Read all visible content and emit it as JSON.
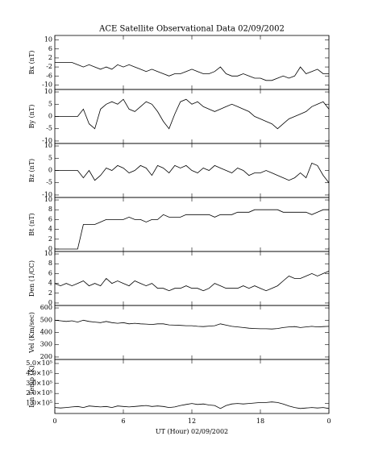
{
  "chart_data": [
    {
      "type": "line",
      "title": "ACE Satellite Observational Data   02/09/2002",
      "ylabel": "Bx (nT)",
      "ylim": [
        -12,
        12
      ],
      "yticks": [
        10,
        6,
        2,
        -2,
        -6,
        -10
      ],
      "color": "#000000",
      "x": [
        0,
        0.5,
        1,
        1.5,
        2,
        2.5,
        3,
        3.5,
        4,
        4.5,
        5,
        5.5,
        6,
        6.5,
        7,
        7.5,
        8,
        8.5,
        9,
        9.5,
        10,
        10.5,
        11,
        11.5,
        12,
        12.5,
        13,
        13.5,
        14,
        14.5,
        15,
        15.5,
        16,
        16.5,
        17,
        17.5,
        18,
        18.5,
        19,
        19.5,
        20,
        20.5,
        21,
        21.5,
        22,
        22.5,
        23,
        23.5,
        24
      ],
      "values": [
        0,
        0,
        0,
        0,
        -1,
        -2,
        -1,
        -2,
        -3,
        -2,
        -3,
        -1,
        -2,
        -1,
        -2,
        -3,
        -4,
        -3,
        -4,
        -5,
        -6,
        -5,
        -5,
        -4,
        -3,
        -4,
        -5,
        -5,
        -4,
        -2,
        -5,
        -6,
        -6,
        -5,
        -6,
        -7,
        -7,
        -8,
        -8,
        -7,
        -6,
        -7,
        -6,
        -2,
        -5,
        -4,
        -3,
        -5,
        -5
      ]
    },
    {
      "type": "line",
      "ylabel": "By (nT)",
      "ylim": [
        -11,
        11
      ],
      "yticks": [
        10,
        5,
        0,
        -5,
        -10
      ],
      "color": "#000000",
      "x": [
        0,
        0.5,
        1,
        1.5,
        2,
        2.5,
        3,
        3.5,
        4,
        4.5,
        5,
        5.5,
        6,
        6.5,
        7,
        7.5,
        8,
        8.5,
        9,
        9.5,
        10,
        10.5,
        11,
        11.5,
        12,
        12.5,
        13,
        13.5,
        14,
        14.5,
        15,
        15.5,
        16,
        16.5,
        17,
        17.5,
        18,
        18.5,
        19,
        19.5,
        20,
        20.5,
        21,
        21.5,
        22,
        22.5,
        23,
        23.5,
        24
      ],
      "values": [
        0,
        0,
        0,
        0,
        0,
        3,
        -3,
        -5,
        3,
        5,
        6,
        5,
        7,
        3,
        2,
        4,
        6,
        5,
        2,
        -2,
        -5,
        1,
        6,
        7,
        5,
        6,
        4,
        3,
        2,
        3,
        4,
        5,
        4,
        3,
        2,
        0,
        -1,
        -2,
        -3,
        -5,
        -3,
        -1,
        0,
        1,
        2,
        4,
        5,
        6,
        3
      ]
    },
    {
      "type": "line",
      "ylabel": "Bz (nT)",
      "ylim": [
        -11,
        11
      ],
      "yticks": [
        10,
        5,
        0,
        -5,
        -10
      ],
      "color": "#000000",
      "x": [
        0,
        0.5,
        1,
        1.5,
        2,
        2.5,
        3,
        3.5,
        4,
        4.5,
        5,
        5.5,
        6,
        6.5,
        7,
        7.5,
        8,
        8.5,
        9,
        9.5,
        10,
        10.5,
        11,
        11.5,
        12,
        12.5,
        13,
        13.5,
        14,
        14.5,
        15,
        15.5,
        16,
        16.5,
        17,
        17.5,
        18,
        18.5,
        19,
        19.5,
        20,
        20.5,
        21,
        21.5,
        22,
        22.5,
        23,
        23.5,
        24
      ],
      "values": [
        0,
        0,
        0,
        0,
        0,
        -3,
        0,
        -4,
        -2,
        1,
        0,
        2,
        1,
        -1,
        0,
        2,
        1,
        -2,
        2,
        1,
        -1,
        2,
        1,
        2,
        0,
        -1,
        1,
        0,
        2,
        1,
        0,
        -1,
        1,
        0,
        -2,
        -1,
        -1,
        0,
        -1,
        -2,
        -3,
        -4,
        -3,
        -1,
        -3,
        3,
        2,
        -2,
        -5
      ]
    },
    {
      "type": "line",
      "ylabel": "Bt (nT)",
      "ylim": [
        -0.5,
        10.5
      ],
      "yticks": [
        10,
        8,
        6,
        4,
        2,
        0
      ],
      "color": "#000000",
      "x": [
        0,
        0.5,
        1,
        1.5,
        2,
        2.5,
        3,
        3.5,
        4,
        4.5,
        5,
        5.5,
        6,
        6.5,
        7,
        7.5,
        8,
        8.5,
        9,
        9.5,
        10,
        10.5,
        11,
        11.5,
        12,
        12.5,
        13,
        13.5,
        14,
        14.5,
        15,
        15.5,
        16,
        16.5,
        17,
        17.5,
        18,
        18.5,
        19,
        19.5,
        20,
        20.5,
        21,
        21.5,
        22,
        22.5,
        23,
        23.5,
        24
      ],
      "values": [
        0,
        0,
        0,
        0,
        0,
        5,
        5,
        5,
        5.5,
        6,
        6,
        6,
        6,
        6.5,
        6,
        6,
        5.5,
        6,
        6,
        7,
        6.5,
        6.5,
        6.5,
        7,
        7,
        7,
        7,
        7,
        6.5,
        7,
        7,
        7,
        7.5,
        7.5,
        7.5,
        8,
        8,
        8,
        8,
        8,
        7.5,
        7.5,
        7.5,
        7.5,
        7.5,
        7,
        7.5,
        8,
        8
      ]
    },
    {
      "type": "line",
      "ylabel": "Den (1/CC)",
      "ylim": [
        -0.5,
        10.5
      ],
      "yticks": [
        10,
        8,
        6,
        4,
        2,
        0
      ],
      "color": "#000000",
      "x": [
        0,
        0.5,
        1,
        1.5,
        2,
        2.5,
        3,
        3.5,
        4,
        4.5,
        5,
        5.5,
        6,
        6.5,
        7,
        7.5,
        8,
        8.5,
        9,
        9.5,
        10,
        10.5,
        11,
        11.5,
        12,
        12.5,
        13,
        13.5,
        14,
        14.5,
        15,
        15.5,
        16,
        16.5,
        17,
        17.5,
        18,
        18.5,
        19,
        19.5,
        20,
        20.5,
        21,
        21.5,
        22,
        22.5,
        23,
        23.5,
        24
      ],
      "values": [
        4,
        3.5,
        4,
        3.5,
        4,
        4.5,
        3.5,
        4,
        3.5,
        5,
        4,
        4.5,
        4,
        3.5,
        4.5,
        4,
        3.5,
        4,
        3,
        3,
        2.5,
        3,
        3,
        3.5,
        3,
        3,
        2.5,
        3,
        4,
        3.5,
        3,
        3,
        3,
        3.5,
        3,
        3.5,
        3,
        2.5,
        3,
        3.5,
        4.5,
        5.5,
        5,
        5,
        5.5,
        6,
        5.5,
        6,
        6.5
      ]
    },
    {
      "type": "line",
      "ylabel": "Vel (Km/sec)",
      "ylim": [
        180,
        620
      ],
      "yticks": [
        600,
        500,
        400,
        300,
        200
      ],
      "color": "#000000",
      "x": [
        0,
        0.5,
        1,
        1.5,
        2,
        2.5,
        3,
        3.5,
        4,
        4.5,
        5,
        5.5,
        6,
        6.5,
        7,
        7.5,
        8,
        8.5,
        9,
        9.5,
        10,
        10.5,
        11,
        11.5,
        12,
        12.5,
        13,
        13.5,
        14,
        14.5,
        15,
        15.5,
        16,
        16.5,
        17,
        17.5,
        18,
        18.5,
        19,
        19.5,
        20,
        20.5,
        21,
        21.5,
        22,
        22.5,
        23,
        23.5,
        24
      ],
      "values": [
        500,
        495,
        490,
        495,
        485,
        500,
        490,
        485,
        480,
        490,
        480,
        475,
        480,
        470,
        475,
        470,
        468,
        465,
        470,
        470,
        462,
        460,
        458,
        455,
        455,
        450,
        448,
        452,
        455,
        470,
        460,
        450,
        445,
        440,
        435,
        432,
        430,
        430,
        428,
        432,
        440,
        445,
        448,
        440,
        445,
        450,
        445,
        448,
        450
      ]
    },
    {
      "type": "line",
      "ylabel": "Ion Temp (K)",
      "xlabel": "UT (Hour)  02/09/2002",
      "ylim": [
        0,
        540000
      ],
      "yticks": [
        {
          "value": 500000,
          "label": "5.0×10⁵"
        },
        {
          "value": 400000,
          "label": "4.0×10⁵"
        },
        {
          "value": 300000,
          "label": "3.0×10⁵"
        },
        {
          "value": 200000,
          "label": "2.0×10⁵"
        },
        {
          "value": 100000,
          "label": "1.0×10⁵"
        }
      ],
      "color": "#000000",
      "xlim": [
        0,
        24
      ],
      "xticks": [
        0,
        6,
        12,
        18,
        {
          "value": 24,
          "label": "0"
        }
      ],
      "x": [
        0,
        0.5,
        1,
        1.5,
        2,
        2.5,
        3,
        3.5,
        4,
        4.5,
        5,
        5.5,
        6,
        6.5,
        7,
        7.5,
        8,
        8.5,
        9,
        9.5,
        10,
        10.5,
        11,
        11.5,
        12,
        12.5,
        13,
        13.5,
        14,
        14.5,
        15,
        15.5,
        16,
        16.5,
        17,
        17.5,
        18,
        18.5,
        19,
        19.5,
        20,
        20.5,
        21,
        21.5,
        22,
        22.5,
        23,
        23.5,
        24
      ],
      "values": [
        60000,
        55000,
        60000,
        65000,
        70000,
        60000,
        75000,
        70000,
        65000,
        70000,
        60000,
        75000,
        70000,
        65000,
        70000,
        75000,
        80000,
        70000,
        75000,
        70000,
        60000,
        65000,
        80000,
        90000,
        100000,
        90000,
        95000,
        85000,
        80000,
        50000,
        80000,
        95000,
        100000,
        95000,
        100000,
        105000,
        110000,
        110000,
        115000,
        110000,
        95000,
        75000,
        60000,
        50000,
        55000,
        60000,
        55000,
        60000,
        50000
      ]
    }
  ]
}
